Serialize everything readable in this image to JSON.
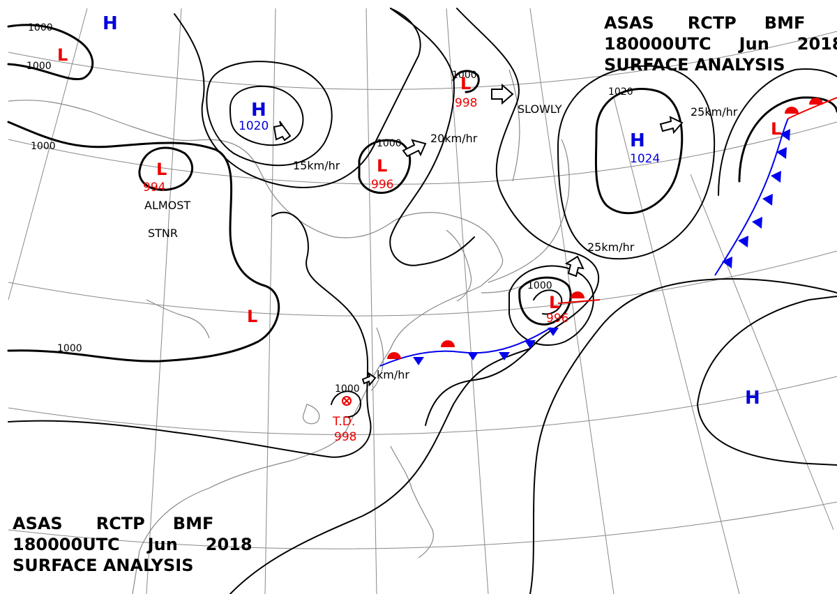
{
  "header_top_right": {
    "line1": [
      "ASAS",
      "RCTP",
      "BMF"
    ],
    "line2": [
      "180000UTC",
      "Jun",
      "2018"
    ],
    "line3": "SURFACE ANALYSIS"
  },
  "header_bottom_left": {
    "line1": [
      "ASAS",
      "RCTP",
      "BMF"
    ],
    "line2": [
      "180000UTC",
      "Jun",
      "2018"
    ],
    "line3": "SURFACE ANALYSIS"
  },
  "colors": {
    "high": "#0000dd",
    "low": "#ee0000",
    "isobar": "#000000",
    "geography": "#888888",
    "warm_front": "#ee0000",
    "cold_front": "#0000ee"
  },
  "pressure_systems": [
    {
      "type": "H",
      "letter": "H",
      "value": ""
    },
    {
      "type": "L",
      "letter": "L",
      "value": ""
    },
    {
      "type": "H",
      "letter": "H",
      "value": "1020"
    },
    {
      "type": "L",
      "letter": "L",
      "value": "994"
    },
    {
      "type": "L",
      "letter": "L",
      "value": "996"
    },
    {
      "type": "L",
      "letter": "L",
      "value": "998"
    },
    {
      "type": "H",
      "letter": "H",
      "value": "1024"
    },
    {
      "type": "L",
      "letter": "L",
      "value": ""
    },
    {
      "type": "L",
      "letter": "L",
      "value": ""
    },
    {
      "type": "L",
      "letter": "L",
      "value": "996"
    },
    {
      "type": "TD",
      "letter": "T.D.",
      "value": "998"
    },
    {
      "type": "H",
      "letter": "H",
      "value": ""
    }
  ],
  "isobar_labels": [
    "1000",
    "1000",
    "1000",
    "1000",
    "1000",
    "1000",
    "1000",
    "1020",
    "1000"
  ],
  "movement_labels": [
    "15km/hr",
    "20km/hr",
    "SLOWLY",
    "25km/hr",
    "25km/hr",
    "km/hr"
  ],
  "annotation": [
    "ALMOST",
    "STNR"
  ],
  "icon": "tropical-depression-icon"
}
